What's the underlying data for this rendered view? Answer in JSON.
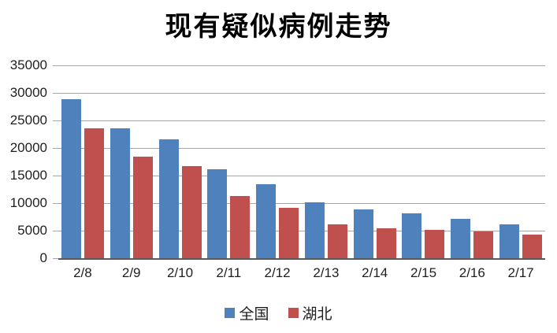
{
  "chart_data": {
    "type": "bar",
    "title": "现有疑似病例走势",
    "categories": [
      "2/8",
      "2/9",
      "2/10",
      "2/11",
      "2/12",
      "2/13",
      "2/14",
      "2/15",
      "2/16",
      "2/17"
    ],
    "series": [
      {
        "name": "全国",
        "color": "#4F81BD",
        "values": [
          28900,
          23600,
          21600,
          16100,
          13400,
          10100,
          8900,
          8100,
          7100,
          6200
        ]
      },
      {
        "name": "湖北",
        "color": "#C0504D",
        "values": [
          23600,
          18400,
          16700,
          11300,
          9100,
          6200,
          5400,
          5100,
          4800,
          4300
        ]
      }
    ],
    "xlabel": "",
    "ylabel": "",
    "ylim": [
      0,
      35000
    ],
    "yticks": [
      0,
      5000,
      10000,
      15000,
      20000,
      25000,
      30000,
      35000
    ],
    "grid": "horizontal",
    "legend_position": "bottom",
    "colors": {
      "background": "#FFFFFF",
      "gridline": "#A6A6A6",
      "axis_line": "#595959",
      "text": "#1F1F1F"
    }
  }
}
